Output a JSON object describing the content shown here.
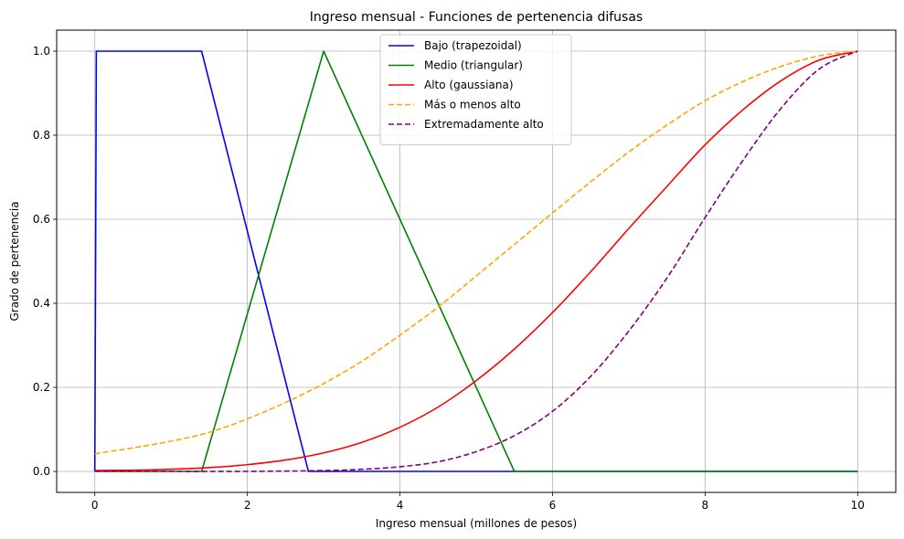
{
  "chart_data": {
    "type": "line",
    "title": "Ingreso mensual - Funciones de pertenencia difusas",
    "xlabel": "Ingreso mensual (millones de pesos)",
    "ylabel": "Grado de pertenencia",
    "xlim": [
      -0.5,
      10.5
    ],
    "ylim": [
      -0.05,
      1.05
    ],
    "xticks": [
      0,
      2,
      4,
      6,
      8,
      10
    ],
    "yticks": [
      0.0,
      0.2,
      0.4,
      0.6,
      0.8,
      1.0
    ],
    "xtick_labels": [
      "0",
      "2",
      "4",
      "6",
      "8",
      "10"
    ],
    "ytick_labels": [
      "0.0",
      "0.2",
      "0.4",
      "0.6",
      "0.8",
      "1.0"
    ],
    "grid": true,
    "legend_position": "top-center",
    "series": [
      {
        "name": "Bajo (trapezoidal)",
        "color": "#0000ff",
        "dash": "solid",
        "x": [
          0,
          0.02,
          1.4,
          2.8,
          10
        ],
        "y": [
          0,
          1,
          1,
          0,
          0
        ]
      },
      {
        "name": "Medio (triangular)",
        "color": "#008000",
        "dash": "solid",
        "x": [
          0,
          1.4,
          3,
          5.5,
          10
        ],
        "y": [
          0,
          0,
          1,
          0,
          0
        ]
      },
      {
        "name": "Alto (gaussiana)",
        "color": "#ff0000",
        "dash": "solid",
        "x": [
          0,
          0.5,
          1,
          1.5,
          2,
          2.5,
          3,
          3.5,
          4,
          4.5,
          5,
          5.5,
          6,
          6.5,
          7,
          7.5,
          8,
          8.5,
          9,
          9.5,
          10
        ],
        "y": [
          0.002,
          0.003,
          0.005,
          0.009,
          0.016,
          0.027,
          0.044,
          0.069,
          0.105,
          0.153,
          0.216,
          0.291,
          0.378,
          0.475,
          0.578,
          0.678,
          0.777,
          0.861,
          0.93,
          0.979,
          1.0
        ]
      },
      {
        "name": "Más o menos alto",
        "color": "#ffa500",
        "dash": "dashed",
        "x": [
          0,
          0.5,
          1,
          1.5,
          2,
          2.5,
          3,
          3.5,
          4,
          4.5,
          5,
          5.5,
          6,
          6.5,
          7,
          7.5,
          8,
          8.5,
          9,
          9.5,
          10
        ],
        "y": [
          0.042,
          0.056,
          0.072,
          0.093,
          0.125,
          0.164,
          0.209,
          0.262,
          0.324,
          0.391,
          0.465,
          0.54,
          0.615,
          0.689,
          0.76,
          0.824,
          0.882,
          0.928,
          0.964,
          0.989,
          1.0
        ]
      },
      {
        "name": "Extremadamente alto",
        "color": "#800080",
        "dash": "dashed",
        "x": [
          0,
          1,
          2,
          3,
          3.5,
          4,
          4.5,
          5,
          5.5,
          6,
          6.5,
          7,
          7.5,
          8,
          8.5,
          9,
          9.5,
          10
        ],
        "y": [
          0,
          0,
          0,
          0.002,
          0.005,
          0.011,
          0.023,
          0.047,
          0.085,
          0.143,
          0.226,
          0.334,
          0.46,
          0.604,
          0.741,
          0.865,
          0.958,
          1.0
        ]
      }
    ]
  }
}
